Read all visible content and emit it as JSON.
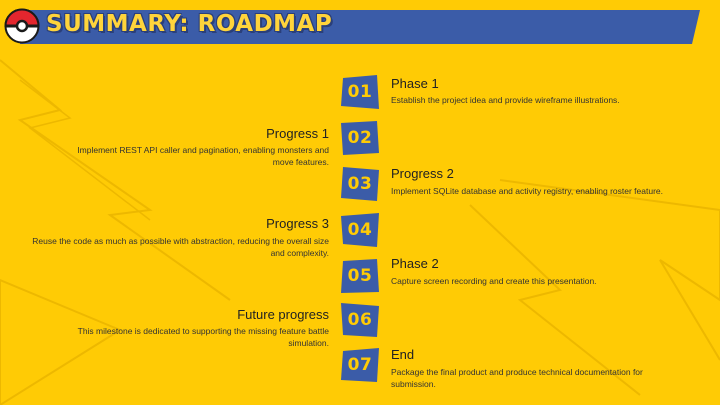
{
  "title": "SUMMARY: ROADMAP",
  "colors": {
    "background": "#FFCB05",
    "banner": "#3B5CA8",
    "badge": "#3B5CA8",
    "badge_text": "#FFCB05"
  },
  "icons": {
    "logo": "pokeball-icon"
  },
  "steps": [
    {
      "number": "01",
      "title": "Phase 1",
      "description": "Establish the project idea and provide wireframe illustrations."
    },
    {
      "number": "02",
      "title": "Progress 1",
      "description": "Implement REST API caller and pagination, enabling monsters and move features."
    },
    {
      "number": "03",
      "title": "Progress 2",
      "description": "Implement SQLite database and activity registry, enabling roster feature."
    },
    {
      "number": "04",
      "title": "Progress 3",
      "description": "Reuse the code as much as possible with abstraction, reducing the overall size and complexity."
    },
    {
      "number": "05",
      "title": "Phase 2",
      "description": "Capture screen recording and create this presentation."
    },
    {
      "number": "06",
      "title": "Future progress",
      "description": "This milestone is dedicated to supporting the missing feature battle simulation."
    },
    {
      "number": "07",
      "title": "End",
      "description": "Package the final product and produce technical documentation for submission."
    }
  ]
}
